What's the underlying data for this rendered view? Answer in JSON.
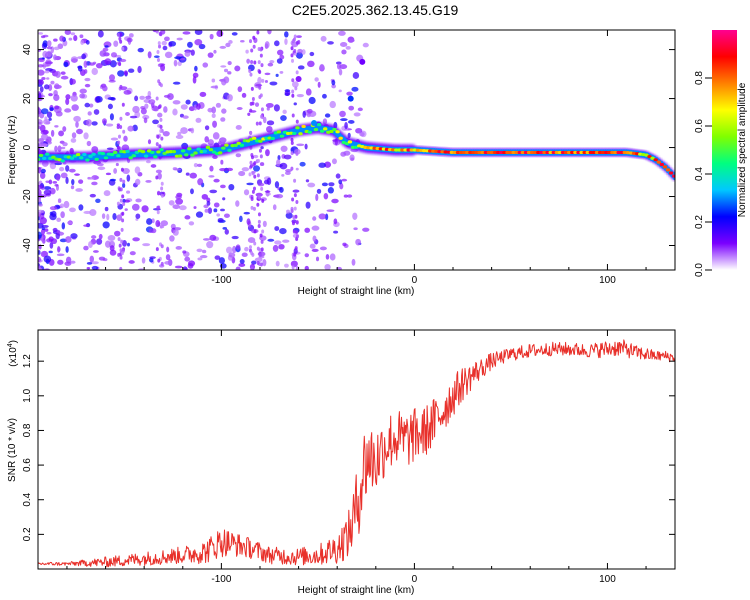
{
  "page": {
    "title": "C2E5.2025.362.13.45.G19"
  },
  "chart_data": [
    {
      "type": "heatmap",
      "title": "C2E5.2025.362.13.45.G19",
      "xlabel": "Height of straight line (km)",
      "ylabel": "Frequency (Hz)",
      "xlim": [
        -195,
        135
      ],
      "ylim": [
        -50,
        48
      ],
      "x_ticks": [
        -100,
        0,
        100
      ],
      "x_tick_labels": [
        "-100",
        "0",
        "100"
      ],
      "y_ticks": [
        -40,
        -20,
        0,
        20,
        40
      ],
      "y_tick_labels": [
        "-40",
        "-20",
        "0",
        "20",
        "40"
      ],
      "ridge": {
        "description": "dominant frequency ridge (Hz) vs height (km)",
        "x": [
          -195,
          -170,
          -150,
          -120,
          -100,
          -85,
          -70,
          -60,
          -50,
          -42,
          -35,
          -25,
          -10,
          0,
          20,
          50,
          80,
          110,
          120,
          125,
          130,
          135
        ],
        "y": [
          -4,
          -4,
          -3,
          -2,
          -1,
          2,
          5,
          7,
          8,
          7,
          2,
          0,
          -1,
          -1,
          -2,
          -2,
          -2,
          -2,
          -3,
          -5,
          -8,
          -12
        ]
      },
      "colorbar": {
        "label": "Normalized spectral amplitude",
        "range": [
          0.0,
          1.0
        ],
        "ticks": [
          0.0,
          0.2,
          0.4,
          0.6,
          0.8
        ],
        "tick_labels": [
          "0.0",
          "0.2",
          "0.4",
          "0.6",
          "0.8"
        ],
        "colors": [
          "#ffffff",
          "#7a00ff",
          "#0000ff",
          "#00c8ff",
          "#00ff80",
          "#80ff00",
          "#ffff00",
          "#ff8000",
          "#ff0000",
          "#ff0090"
        ]
      }
    },
    {
      "type": "line",
      "xlabel": "Height of straight line (km)",
      "ylabel": "SNR (10 * v/v)",
      "y_multiplier": "(x10",
      "y_multiplier_exponent": "4",
      "y_multiplier_close": ")",
      "xlim": [
        -195,
        135
      ],
      "ylim": [
        0.0,
        1.38
      ],
      "x_ticks": [
        -100,
        0,
        100
      ],
      "x_tick_labels": [
        "-100",
        "0",
        "100"
      ],
      "y_ticks": [
        0.2,
        0.4,
        0.6,
        0.8,
        1.0,
        1.2
      ],
      "y_tick_labels": [
        "0.2",
        "0.4",
        "0.6",
        "0.8",
        "1.0",
        "1.2"
      ],
      "series": [
        {
          "name": "SNR",
          "color": "#e8302a",
          "x": [
            -195,
            -180,
            -160,
            -140,
            -120,
            -108,
            -100,
            -92,
            -85,
            -75,
            -62,
            -50,
            -40,
            -34,
            -30,
            -27,
            -24,
            -20,
            -15,
            -10,
            -5,
            0,
            5,
            10,
            15,
            20,
            25,
            30,
            35,
            40,
            45,
            50,
            60,
            70,
            80,
            90,
            100,
            105,
            110,
            115,
            120,
            125,
            130,
            135
          ],
          "y": [
            0.03,
            0.03,
            0.04,
            0.06,
            0.08,
            0.1,
            0.16,
            0.14,
            0.12,
            0.08,
            0.07,
            0.08,
            0.12,
            0.2,
            0.35,
            0.55,
            0.65,
            0.62,
            0.72,
            0.76,
            0.74,
            0.77,
            0.79,
            0.84,
            0.92,
            1.0,
            1.07,
            1.12,
            1.16,
            1.2,
            1.22,
            1.24,
            1.26,
            1.27,
            1.27,
            1.26,
            1.27,
            1.28,
            1.27,
            1.25,
            1.24,
            1.23,
            1.23,
            1.22
          ],
          "noise": [
            0.01,
            0.01,
            0.03,
            0.04,
            0.05,
            0.07,
            0.09,
            0.07,
            0.06,
            0.05,
            0.05,
            0.06,
            0.09,
            0.14,
            0.22,
            0.25,
            0.24,
            0.2,
            0.18,
            0.17,
            0.17,
            0.16,
            0.15,
            0.15,
            0.14,
            0.12,
            0.1,
            0.08,
            0.06,
            0.05,
            0.04,
            0.04,
            0.04,
            0.04,
            0.04,
            0.04,
            0.05,
            0.05,
            0.05,
            0.04,
            0.04,
            0.03,
            0.03,
            0.03
          ]
        }
      ]
    }
  ]
}
